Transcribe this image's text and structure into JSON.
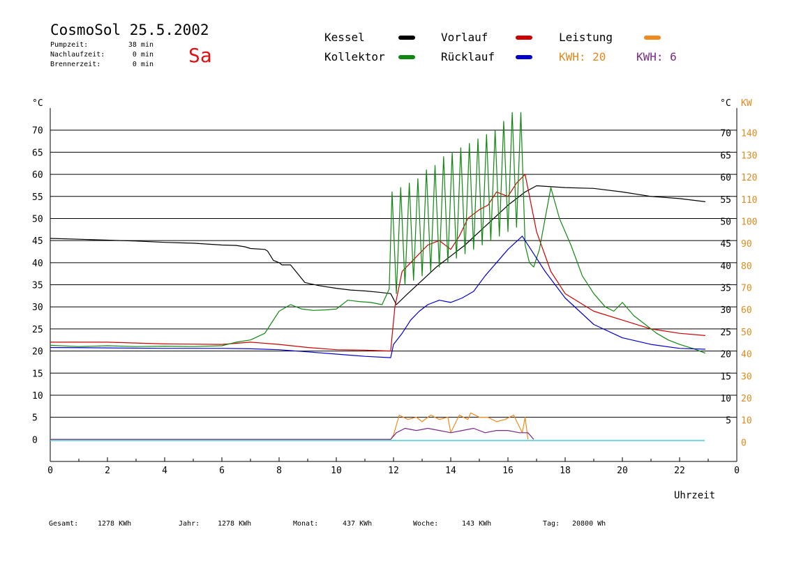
{
  "header": {
    "title": "CosmoSol 25.5.2002",
    "day": "Sa",
    "stats": [
      {
        "label": "Pumpzeit:",
        "value": "38 min"
      },
      {
        "label": "Nachlaufzeit:",
        "value": "0 min"
      },
      {
        "label": "Brennerzeit:",
        "value": "0 min"
      }
    ]
  },
  "legend": {
    "items": [
      {
        "label": "Kessel",
        "color": "#000000"
      },
      {
        "label": "Vorlauf",
        "color": "#cc0000"
      },
      {
        "label": "Leistung",
        "color": "#f08a1e"
      },
      {
        "label": "Kollektor",
        "color": "#118811"
      },
      {
        "label": "Rücklauf",
        "color": "#0000cc"
      }
    ],
    "kwh": [
      {
        "text": "KWH: 20",
        "color": "#e08a1e"
      },
      {
        "text": "KWH: 6",
        "color": "#7a2a8a"
      }
    ]
  },
  "footer": {
    "items": [
      {
        "label": "Gesamt:",
        "value": "1278 KWh"
      },
      {
        "label": "Jahr:",
        "value": "1278 KWh"
      },
      {
        "label": "Monat:",
        "value": "437 KWh"
      },
      {
        "label": "Woche:",
        "value": "143 KWh"
      },
      {
        "label": "Tag:",
        "value": "20800 Wh"
      }
    ]
  },
  "chart_data": {
    "type": "line",
    "xlabel": "Uhrzeit",
    "ylabel_left": "°C",
    "ylabel_right": "°C",
    "ylabel_right2": "KW",
    "xlim": [
      0,
      24
    ],
    "ylim": [
      -5,
      75
    ],
    "y2lim": [
      -10,
      150
    ],
    "grid": true,
    "x_ticks": [
      "0",
      "2",
      "4",
      "6",
      "8",
      "10",
      "12",
      "14",
      "16",
      "18",
      "20",
      "22",
      "0"
    ],
    "y_ticks": [
      0,
      5,
      10,
      15,
      20,
      25,
      30,
      35,
      40,
      45,
      50,
      55,
      60,
      65,
      70
    ],
    "y_ticks_right": [
      5,
      10,
      15,
      20,
      25,
      30,
      35,
      40,
      45,
      50,
      55,
      60,
      65,
      70
    ],
    "y2_ticks": [
      0,
      10,
      20,
      30,
      40,
      50,
      60,
      70,
      80,
      90,
      100,
      110,
      120,
      130,
      140
    ],
    "series": [
      {
        "name": "Kessel",
        "color": "#000000",
        "x": [
          0,
          1,
          2,
          3,
          4,
          5,
          6,
          6.5,
          6.8,
          7,
          7.5,
          7.6,
          7.8,
          8,
          8.1,
          8.4,
          8.9,
          9.1,
          9.4,
          10,
          10.5,
          11,
          11.5,
          11.9,
          12.1,
          12.5,
          13,
          13.5,
          14,
          14.5,
          15,
          15.5,
          16,
          16.6,
          17,
          18,
          19,
          20,
          21,
          22,
          22.9
        ],
        "y": [
          45.5,
          45.3,
          45.1,
          44.9,
          44.6,
          44.4,
          44,
          43.9,
          43.6,
          43.2,
          43,
          42.6,
          40.5,
          40,
          39.5,
          39.5,
          35.5,
          35.2,
          34.8,
          34.2,
          33.8,
          33.6,
          33.3,
          33,
          30.5,
          33,
          36,
          39,
          41.5,
          44,
          47,
          50,
          53,
          56,
          57.4,
          57,
          56.8,
          56,
          55,
          54.5,
          53.8
        ]
      },
      {
        "name": "Vorlauf",
        "color": "#cc0000",
        "x": [
          0,
          2,
          4,
          6,
          7,
          8,
          9,
          10,
          11,
          11.9,
          12.05,
          12.3,
          12.6,
          12.9,
          13.2,
          13.6,
          14,
          14.3,
          14.6,
          15,
          15.3,
          15.6,
          16,
          16.3,
          16.6,
          17,
          17.5,
          18,
          19,
          20,
          21,
          22,
          22.9
        ],
        "y": [
          22,
          22,
          21.6,
          21.5,
          22,
          21.5,
          20.8,
          20.3,
          20.2,
          20,
          30,
          38,
          40,
          42,
          44,
          45,
          43,
          46,
          50,
          52,
          53,
          56,
          55,
          58,
          60,
          47,
          38,
          33,
          29,
          27,
          25,
          24,
          23.5
        ]
      },
      {
        "name": "Kollektor",
        "color": "#118811",
        "x": [
          0,
          1,
          2,
          3,
          4,
          5,
          6,
          6.5,
          7,
          7.5,
          8,
          8.4,
          8.8,
          9.2,
          9.6,
          10,
          10.4,
          10.8,
          11.2,
          11.6,
          11.85,
          11.95,
          12.1,
          12.25,
          12.4,
          12.55,
          12.7,
          12.85,
          13,
          13.15,
          13.3,
          13.45,
          13.6,
          13.75,
          13.9,
          14.05,
          14.2,
          14.35,
          14.5,
          14.65,
          14.8,
          14.95,
          15.1,
          15.25,
          15.4,
          15.55,
          15.7,
          15.85,
          16,
          16.15,
          16.3,
          16.45,
          16.6,
          16.75,
          16.9,
          17.1,
          17.3,
          17.5,
          17.8,
          18.2,
          18.6,
          19,
          19.4,
          19.7,
          20,
          20.4,
          20.8,
          21.2,
          21.6,
          22,
          22.5,
          22.9
        ],
        "y": [
          21.3,
          21,
          21.2,
          21,
          21.1,
          21,
          21.2,
          22,
          22.5,
          24,
          29,
          30.5,
          29.5,
          29.2,
          29.3,
          29.5,
          31.5,
          31.2,
          31,
          30.5,
          34,
          56,
          33,
          57,
          35,
          58,
          36,
          59,
          37,
          61,
          38,
          62,
          39,
          64,
          40,
          65,
          41,
          66,
          42,
          67,
          43,
          68,
          44,
          69,
          45,
          70,
          46,
          72,
          47,
          74,
          48,
          74,
          44,
          40,
          39,
          43,
          50,
          57,
          50,
          44,
          37,
          33,
          30,
          29,
          31,
          28,
          26,
          24,
          22.5,
          21.5,
          20.5,
          19.5
        ]
      },
      {
        "name": "Rücklauf",
        "color": "#0000cc",
        "x": [
          0,
          2,
          4,
          6,
          7,
          8,
          9,
          10,
          11,
          11.9,
          12,
          12.3,
          12.6,
          12.9,
          13.2,
          13.6,
          14,
          14.4,
          14.8,
          15.2,
          15.6,
          16,
          16.5,
          16.9,
          17.3,
          18,
          18.5,
          19,
          20,
          21,
          22,
          22.9
        ],
        "y": [
          20.8,
          20.7,
          20.6,
          20.6,
          20.5,
          20.3,
          19.8,
          19.3,
          18.8,
          18.5,
          21.5,
          24,
          27,
          29,
          30.5,
          31.5,
          31,
          32,
          33.5,
          37,
          40,
          43,
          46,
          42,
          38,
          32,
          29,
          26,
          23,
          21.5,
          20.6,
          20.4
        ]
      },
      {
        "name": "Leistung",
        "color": "#f08a1e",
        "axis": "right2",
        "x": [
          0,
          11.9,
          12,
          12.2,
          12.5,
          12.8,
          13,
          13.3,
          13.6,
          13.9,
          14,
          14.3,
          14.6,
          14.7,
          15,
          15.3,
          15.6,
          15.9,
          16.2,
          16.5,
          16.6,
          16.7
        ],
        "y": [
          0,
          0,
          2,
          11,
          9,
          10,
          8,
          11,
          9,
          10,
          3,
          11,
          9,
          12,
          10,
          10,
          8,
          9,
          11,
          3,
          10,
          0
        ]
      },
      {
        "name": "",
        "color": "#7a2a8a",
        "axis": "right2",
        "x": [
          0,
          11.9,
          12.1,
          12.4,
          12.8,
          13.2,
          13.6,
          14,
          14.4,
          14.8,
          15.2,
          15.6,
          16,
          16.4,
          16.7,
          16.9
        ],
        "y": [
          0,
          0,
          3,
          5,
          4,
          5,
          4,
          3,
          4,
          5,
          3,
          4,
          4,
          3,
          3,
          0
        ]
      }
    ]
  }
}
